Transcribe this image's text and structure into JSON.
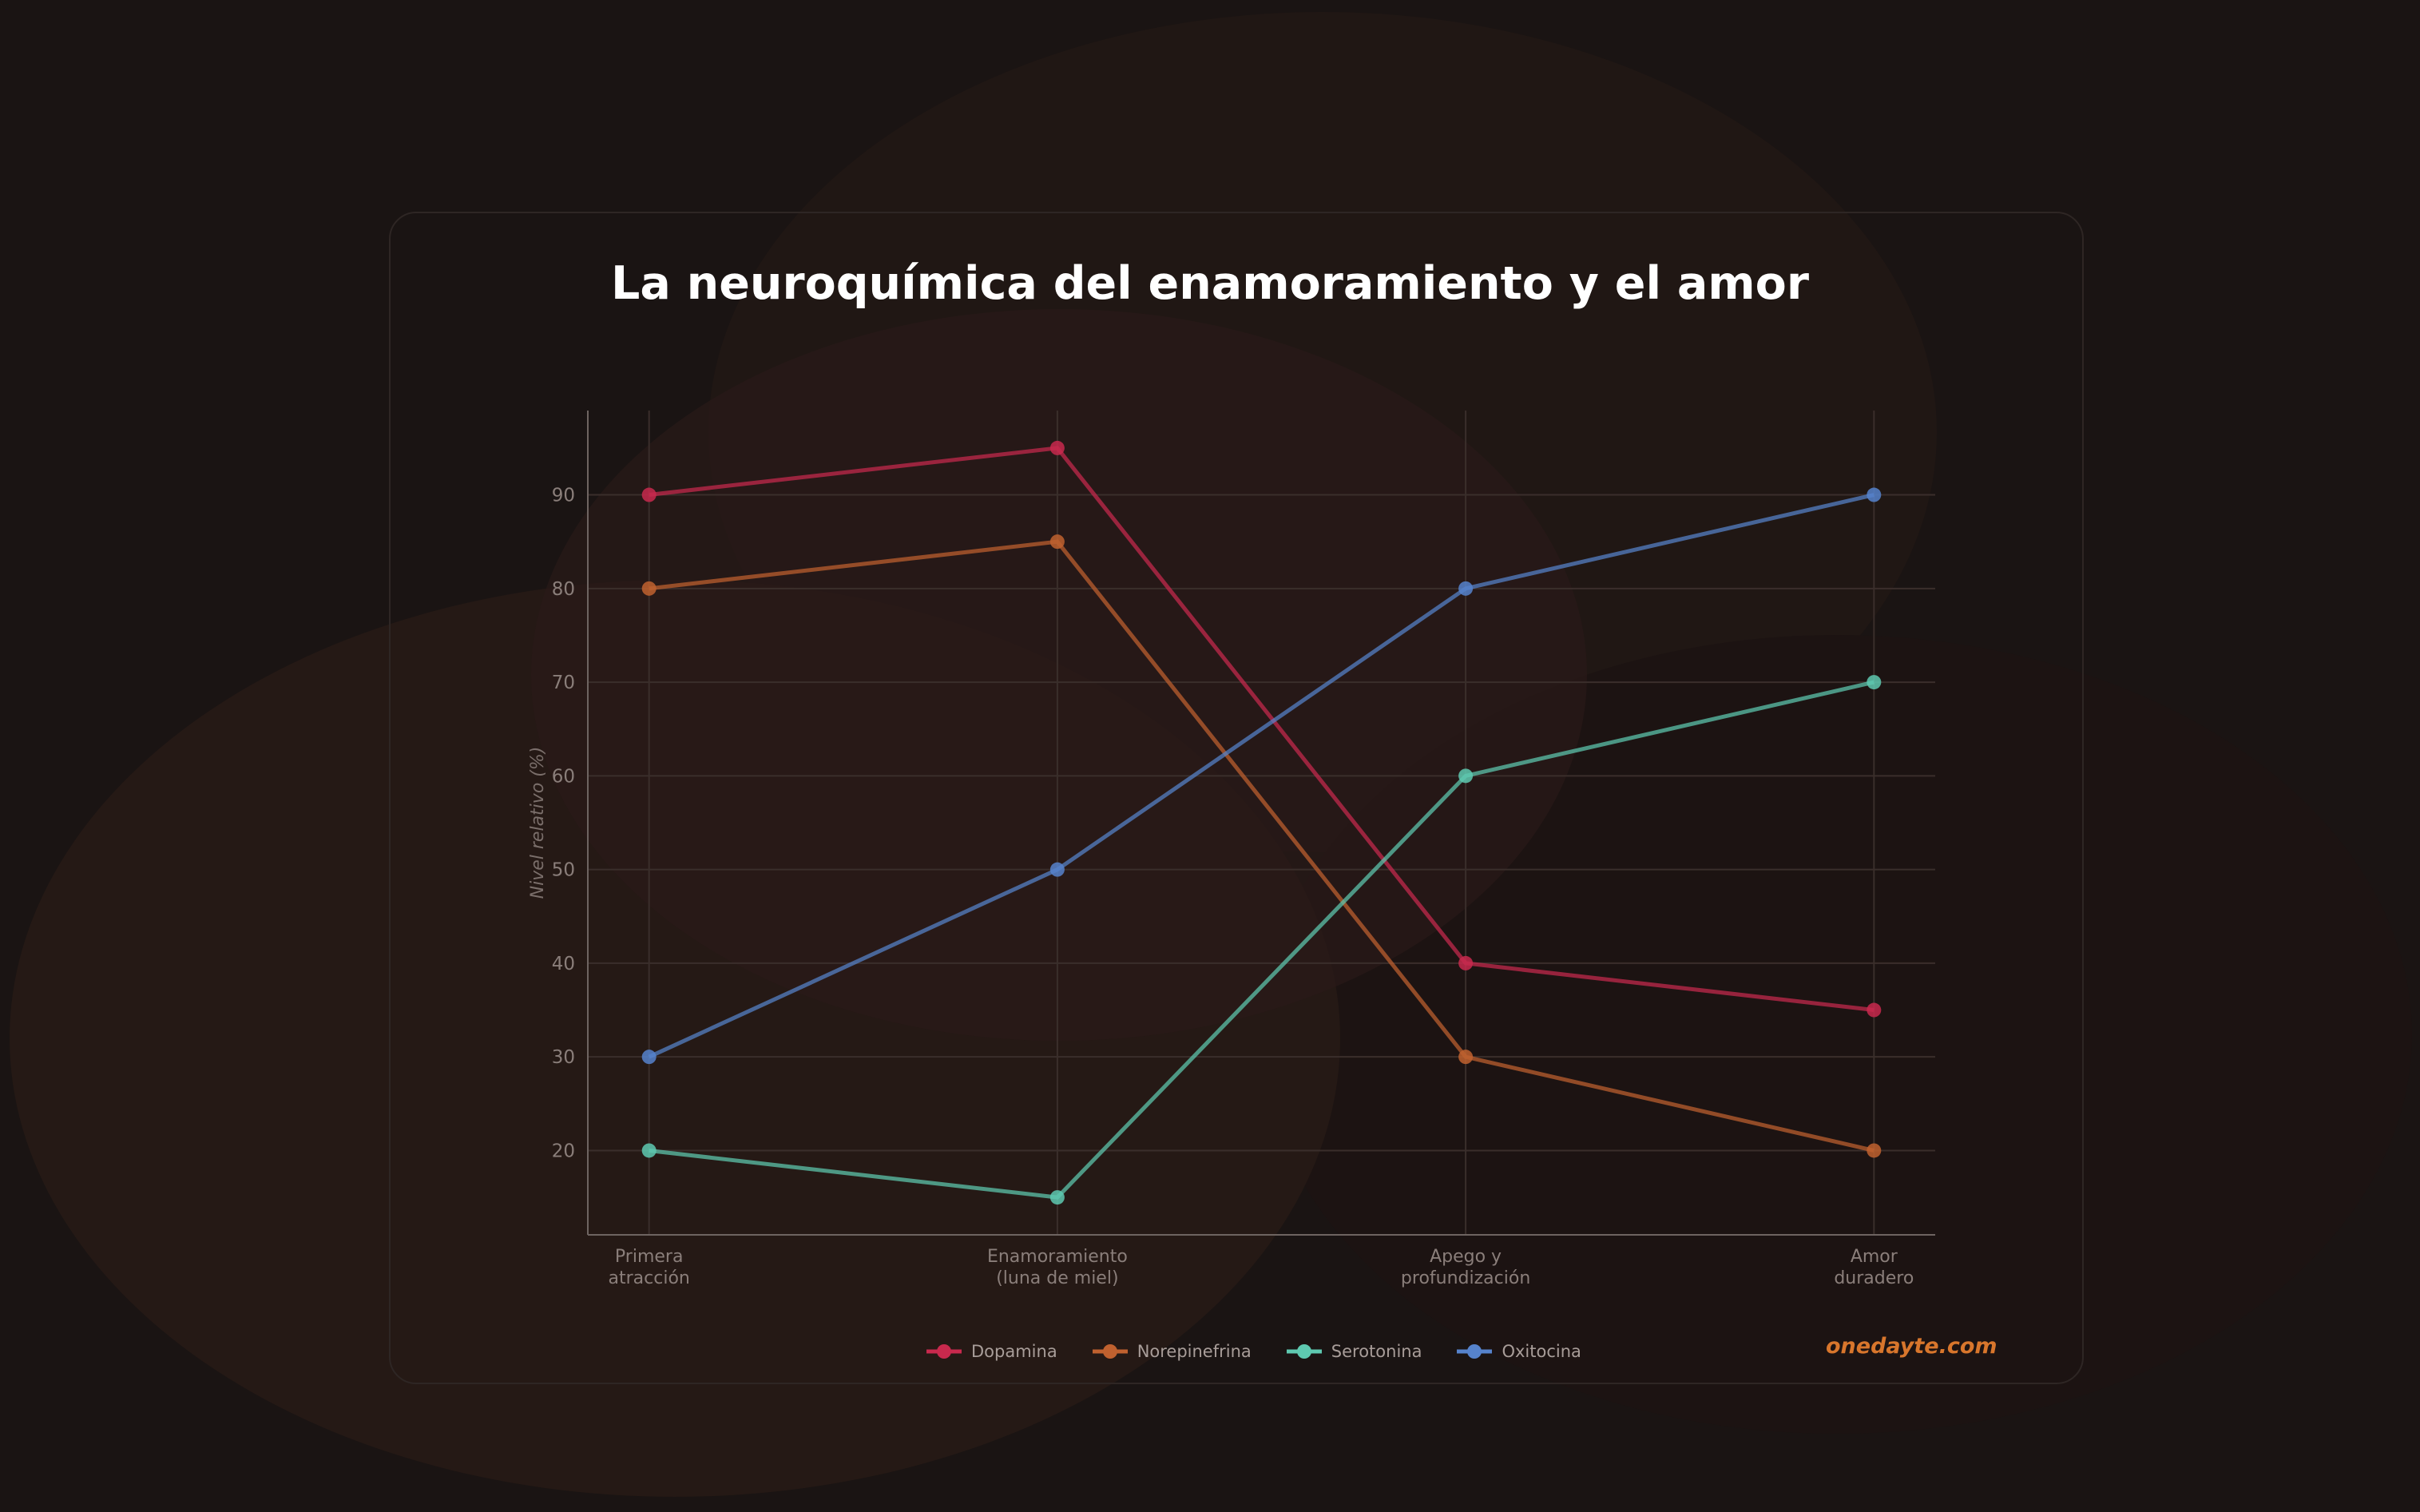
{
  "chart_data": {
    "type": "line",
    "title": "La neuroquímica del enamoramiento y el amor",
    "xlabel": "",
    "ylabel": "Nivel relativo (%)",
    "categories": [
      "Primera\natracción",
      "Enamoramiento\n(luna de miel)",
      "Apego y\nprofundización",
      "Amor\nduradero"
    ],
    "yticks": [
      20,
      30,
      40,
      50,
      60,
      70,
      80,
      90
    ],
    "ylim": [
      11,
      99
    ],
    "grid": true,
    "legend": "bottom-center",
    "series": [
      {
        "name": "Dopamina",
        "values": [
          90,
          95,
          40,
          35
        ],
        "color": "#c8294d"
      },
      {
        "name": "Norepinefrina",
        "values": [
          80,
          85,
          30,
          20
        ],
        "color": "#c0612f"
      },
      {
        "name": "Serotonina",
        "values": [
          20,
          15,
          60,
          70
        ],
        "color": "#5ec9b0"
      },
      {
        "name": "Oxitocina",
        "values": [
          30,
          50,
          80,
          90
        ],
        "color": "#5683cc"
      }
    ]
  },
  "watermark": "onedayte.com"
}
